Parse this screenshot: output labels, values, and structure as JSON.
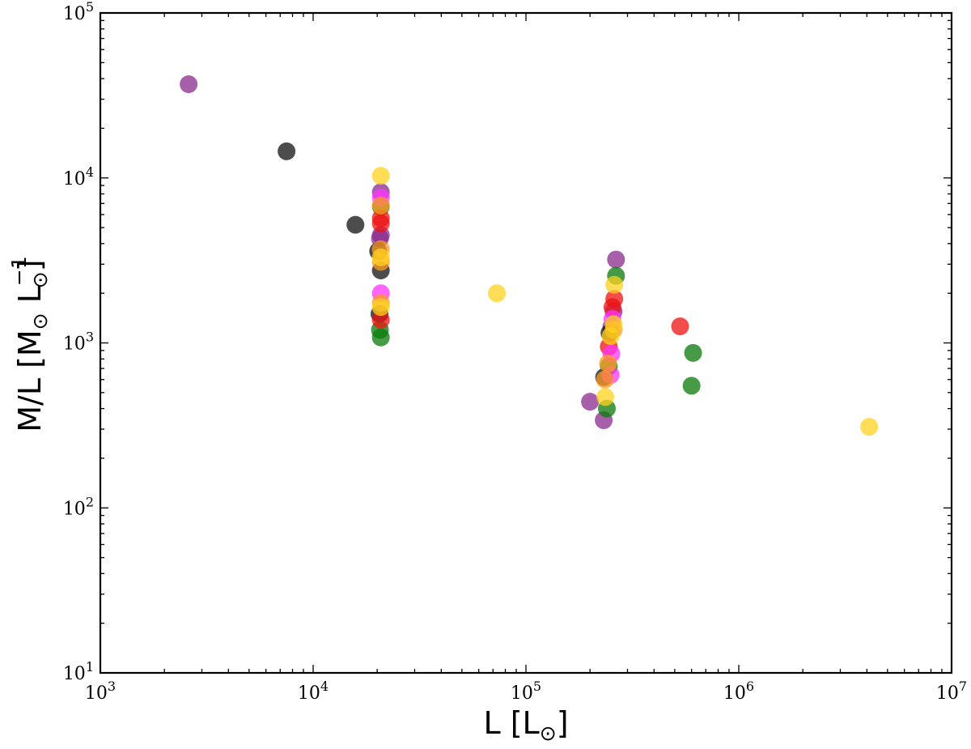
{
  "chart_data": {
    "type": "scatter",
    "xscale": "log",
    "yscale": "log",
    "xlim": [
      1000,
      10000000
    ],
    "ylim": [
      10,
      100000
    ],
    "x_ticks": [
      1000,
      10000,
      100000,
      1000000,
      10000000
    ],
    "x_tick_labels": [
      {
        "base": "10",
        "exp": "3"
      },
      {
        "base": "10",
        "exp": "4"
      },
      {
        "base": "10",
        "exp": "5"
      },
      {
        "base": "10",
        "exp": "6"
      },
      {
        "base": "10",
        "exp": "7"
      }
    ],
    "y_ticks": [
      10,
      100,
      1000,
      10000,
      100000
    ],
    "y_tick_labels": [
      {
        "base": "10",
        "exp": "1"
      },
      {
        "base": "10",
        "exp": "2"
      },
      {
        "base": "10",
        "exp": "3"
      },
      {
        "base": "10",
        "exp": "4"
      },
      {
        "base": "10",
        "exp": "5"
      }
    ],
    "xlabel": {
      "main": "L [L",
      "sub": "⊙",
      "close": "]"
    },
    "ylabel": {
      "main": "M/L [M",
      "sub1": "⊙",
      "mid": " L",
      "sup": "−1",
      "sub2": "⊙",
      "close": "]"
    },
    "grid": false,
    "legend": "none",
    "colors": {
      "purple": "#8B2A8E",
      "black": "#111111",
      "green": "#0A7A0A",
      "red": "#EE1111",
      "magenta": "#FF33FF",
      "orange": "#FF9922",
      "gold": "#FFD21F"
    },
    "series": [
      {
        "color": "purple",
        "points": [
          [
            2600,
            37000
          ],
          [
            20800,
            8200
          ],
          [
            20800,
            4500
          ],
          [
            20600,
            4300
          ],
          [
            200000,
            440
          ],
          [
            232000,
            340
          ],
          [
            265000,
            3200
          ],
          [
            258000,
            1550
          ],
          [
            252000,
            1250
          ]
        ]
      },
      {
        "color": "black",
        "points": [
          [
            7500,
            14500
          ],
          [
            15800,
            5200
          ],
          [
            20200,
            3600
          ],
          [
            20800,
            2750
          ],
          [
            20500,
            1500
          ],
          [
            233000,
            620
          ],
          [
            247000,
            1150
          ]
        ]
      },
      {
        "color": "green",
        "points": [
          [
            20800,
            1080
          ],
          [
            20600,
            1200
          ],
          [
            20800,
            6700
          ],
          [
            265000,
            2550
          ],
          [
            245000,
            720
          ],
          [
            610000,
            870
          ],
          [
            600000,
            550
          ],
          [
            240000,
            400
          ]
        ]
      },
      {
        "color": "red",
        "points": [
          [
            20800,
            5300
          ],
          [
            20800,
            5700
          ],
          [
            20800,
            1380
          ],
          [
            260000,
            1850
          ],
          [
            255000,
            1650
          ],
          [
            245000,
            950
          ],
          [
            530000,
            1260
          ]
        ]
      },
      {
        "color": "magenta",
        "points": [
          [
            20800,
            2000
          ],
          [
            20800,
            7600
          ],
          [
            255000,
            1400
          ],
          [
            250000,
            640
          ],
          [
            252000,
            860
          ]
        ]
      },
      {
        "color": "orange",
        "points": [
          [
            20800,
            1750
          ],
          [
            20800,
            3100
          ],
          [
            20800,
            3700
          ],
          [
            20800,
            6800
          ],
          [
            235000,
            600
          ],
          [
            243000,
            750
          ],
          [
            258000,
            1200
          ]
        ]
      },
      {
        "color": "gold",
        "points": [
          [
            20800,
            10300
          ],
          [
            20800,
            3300
          ],
          [
            20800,
            1650
          ],
          [
            73000,
            2000
          ],
          [
            260000,
            2250
          ],
          [
            258000,
            1300
          ],
          [
            250000,
            1100
          ],
          [
            236000,
            470
          ],
          [
            4100000,
            310
          ]
        ]
      }
    ]
  }
}
